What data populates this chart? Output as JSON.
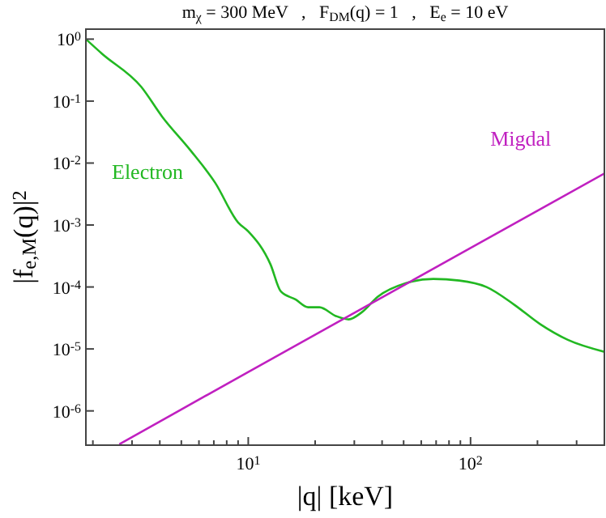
{
  "chart_data": {
    "type": "line",
    "title": "m$_{χ}$ = 300 MeV   ,   F$_{DM}$(q) = 1   ,   E$_{e}$ = 10 eV",
    "xlabel": "|q|  [keV]",
    "ylabel": "|f$_{e,M}$(q)|$^{2}$",
    "log": "xy",
    "grid": false,
    "line_style": "solid",
    "xlim": [
      1.86,
      400
    ],
    "ylim": [
      2.8e-07,
      1.45
    ],
    "xticks": [
      {
        "value": 2,
        "label": null
      },
      {
        "value": 3,
        "label": null
      },
      {
        "value": 4,
        "label": null
      },
      {
        "value": 5,
        "label": null
      },
      {
        "value": 6,
        "label": null
      },
      {
        "value": 7,
        "label": null
      },
      {
        "value": 8,
        "label": null
      },
      {
        "value": 9,
        "label": null
      },
      {
        "value": 10,
        "label": "10$^{1}$"
      },
      {
        "value": 20,
        "label": null
      },
      {
        "value": 30,
        "label": null
      },
      {
        "value": 40,
        "label": null
      },
      {
        "value": 50,
        "label": null
      },
      {
        "value": 60,
        "label": null
      },
      {
        "value": 70,
        "label": null
      },
      {
        "value": 80,
        "label": null
      },
      {
        "value": 90,
        "label": null
      },
      {
        "value": 100,
        "label": "10$^{2}$"
      },
      {
        "value": 200,
        "label": null
      },
      {
        "value": 300,
        "label": null
      },
      {
        "value": 400,
        "label": null
      }
    ],
    "yticks": [
      {
        "value": 1,
        "label": "10$^{0}$"
      },
      {
        "value": 0.1,
        "label": "10$^{-1}$"
      },
      {
        "value": 0.01,
        "label": "10$^{-2}$"
      },
      {
        "value": 0.001,
        "label": "10$^{-3}$"
      },
      {
        "value": 0.0001,
        "label": "10$^{-4}$"
      },
      {
        "value": 1e-05,
        "label": "10$^{-5}$"
      },
      {
        "value": 1e-06,
        "label": "10$^{-6}$"
      }
    ],
    "series": [
      {
        "name": "Electron",
        "color": "#22b822",
        "x": [
          1.86,
          2.2,
          3.3,
          4.1,
          5.5,
          7.1,
          9.0,
          10,
          12.6,
          14,
          16.3,
          18.6,
          20.9,
          24.8,
          28.3,
          32.4,
          38.3,
          51,
          68,
          89,
          118,
          157,
          206,
          274,
          400
        ],
        "values": [
          1.0,
          0.58,
          0.17,
          0.056,
          0.016,
          0.0048,
          0.0011,
          0.00079,
          0.00023,
          8.5e-05,
          6.3e-05,
          4.7e-05,
          4.7e-05,
          3.4e-05,
          3e-05,
          3.9e-05,
          7e-05,
          0.000115,
          0.000135,
          0.000127,
          0.0001,
          5.2e-05,
          2.5e-05,
          1.4e-05,
          9e-06
        ]
      },
      {
        "name": "Migdal",
        "color": "#c020c0",
        "x": [
          2.63,
          10,
          100,
          400
        ],
        "values": [
          2.9e-07,
          4.25e-06,
          0.000425,
          0.0068
        ]
      }
    ]
  }
}
